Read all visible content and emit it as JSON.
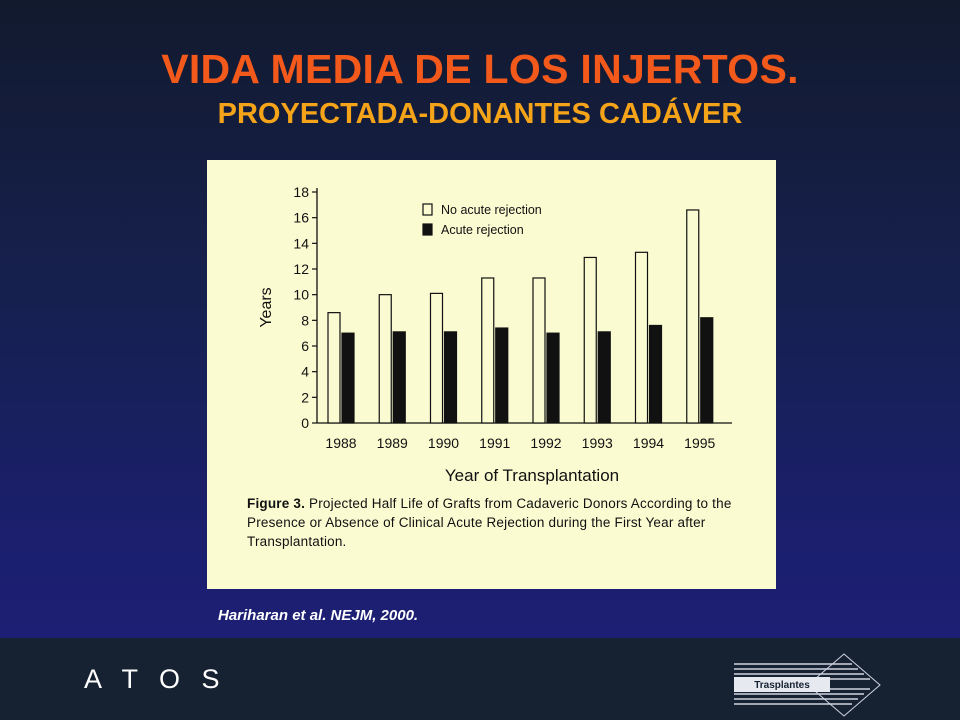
{
  "slide": {
    "title": "VIDA MEDIA DE LOS INJERTOS.",
    "subtitle": "PROYECTADA-DONANTES CADÁVER"
  },
  "chart_data": {
    "type": "bar",
    "categories": [
      "1988",
      "1989",
      "1990",
      "1991",
      "1992",
      "1993",
      "1994",
      "1995"
    ],
    "series": [
      {
        "name": "No acute rejection",
        "values": [
          8.6,
          10.0,
          10.1,
          11.3,
          11.3,
          12.9,
          13.3,
          16.6
        ],
        "fill": "#fbfbd2"
      },
      {
        "name": "Acute rejection",
        "values": [
          7.0,
          7.1,
          7.1,
          7.4,
          7.0,
          7.1,
          7.6,
          8.2
        ],
        "fill": "#111111"
      }
    ],
    "xlabel": "Year of Transplantation",
    "ylabel": "Years",
    "yticks": [
      "0",
      "2",
      "4",
      "6",
      "8",
      "10",
      "12",
      "14",
      "16",
      "18"
    ],
    "ylim": [
      0,
      18
    ],
    "legend_position": "top",
    "grid": false,
    "caption_label": "Figure 3.",
    "caption_text": "Projected Half Life of Grafts from Cadaveric Donors According to the Presence or Absence of Clinical Acute Rejection during the First Year after Transplantation."
  },
  "citation": "Hariharan et al. NEJM, 2000.",
  "footer": {
    "brand": "A T O S",
    "logo_text": "Trasplantes"
  },
  "colors": {
    "title": "#f4591c",
    "subtitle": "#f5a41a",
    "panel": "#fbfbd2",
    "footer": "#162132"
  }
}
